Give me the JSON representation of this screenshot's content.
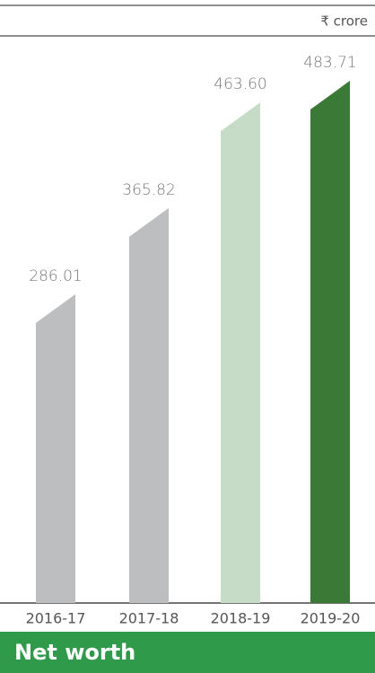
{
  "chart_data": {
    "type": "bar",
    "title": "Net worth",
    "unit": "₹ crore",
    "categories": [
      "2016-17",
      "2017-18",
      "2018-19",
      "2019-20"
    ],
    "values": [
      286.01,
      365.82,
      463.6,
      483.71
    ],
    "value_labels": [
      "286.01",
      "365.82",
      "463.60",
      "483.71"
    ],
    "colors": [
      "#bdbec0",
      "#bdbec0",
      "#c6dcc6",
      "#3b7a36"
    ]
  }
}
